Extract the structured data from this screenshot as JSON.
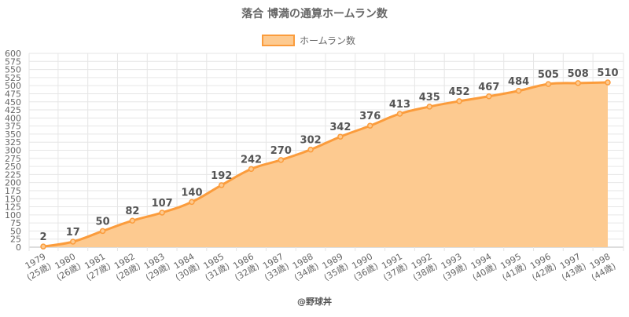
{
  "chart_data": {
    "type": "area",
    "title": "落合 博満の通算ホームラン数",
    "legend": {
      "label": "ホームラン数",
      "placement": "top-center"
    },
    "xlabel": "",
    "ylabel": "",
    "ylim": [
      0,
      600
    ],
    "y_ticks": [
      0,
      25,
      50,
      75,
      100,
      125,
      150,
      175,
      200,
      225,
      250,
      275,
      300,
      325,
      350,
      375,
      400,
      425,
      450,
      475,
      500,
      525,
      550,
      575,
      600
    ],
    "grid": true,
    "categories": [
      [
        "1979",
        "(25歳)"
      ],
      [
        "1980",
        "(26歳)"
      ],
      [
        "1981",
        "(27歳)"
      ],
      [
        "1982",
        "(28歳)"
      ],
      [
        "1983",
        "(29歳)"
      ],
      [
        "1984",
        "(30歳)"
      ],
      [
        "1985",
        "(31歳)"
      ],
      [
        "1986",
        "(32歳)"
      ],
      [
        "1987",
        "(33歳)"
      ],
      [
        "1988",
        "(34歳)"
      ],
      [
        "1989",
        "(35歳)"
      ],
      [
        "1990",
        "(36歳)"
      ],
      [
        "1991",
        "(37歳)"
      ],
      [
        "1992",
        "(38歳)"
      ],
      [
        "1993",
        "(39歳)"
      ],
      [
        "1994",
        "(40歳)"
      ],
      [
        "1995",
        "(41歳)"
      ],
      [
        "1996",
        "(42歳)"
      ],
      [
        "1997",
        "(43歳)"
      ],
      [
        "1998",
        "(44歳)"
      ]
    ],
    "series": [
      {
        "values": [
          2,
          17,
          50,
          82,
          107,
          140,
          192,
          242,
          270,
          302,
          342,
          376,
          413,
          435,
          452,
          467,
          484,
          505,
          508,
          510
        ]
      }
    ],
    "colors": {
      "line": "#fb9c3c",
      "fill": "#fdca90",
      "point": "#fb9c3c"
    }
  },
  "footer": {
    "credit": "@野球丼"
  }
}
